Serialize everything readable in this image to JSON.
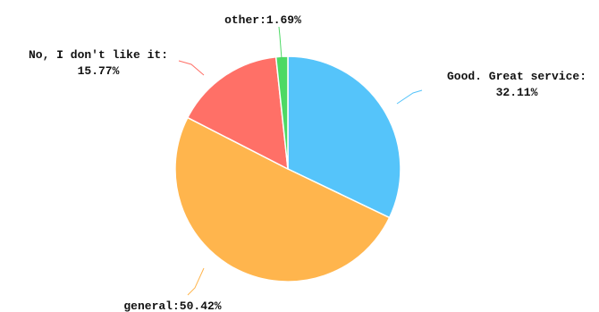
{
  "chart_data": {
    "type": "pie",
    "title": "",
    "slices": [
      {
        "name": "Good. Great service",
        "value": 32.11,
        "label": "32.11%",
        "color": "#55C4FA"
      },
      {
        "name": "general",
        "value": 50.42,
        "label": "50.42%",
        "color": "#FFB54D"
      },
      {
        "name": "No, I don't like it",
        "value": 15.77,
        "label": "15.77%",
        "color": "#FF7067"
      },
      {
        "name": "other",
        "value": 1.69,
        "label": "1.69%",
        "color": "#4CD964"
      }
    ],
    "start": "12 o'clock",
    "direction": "clockwise",
    "legend": "none",
    "labels": "outside with leader lines"
  }
}
